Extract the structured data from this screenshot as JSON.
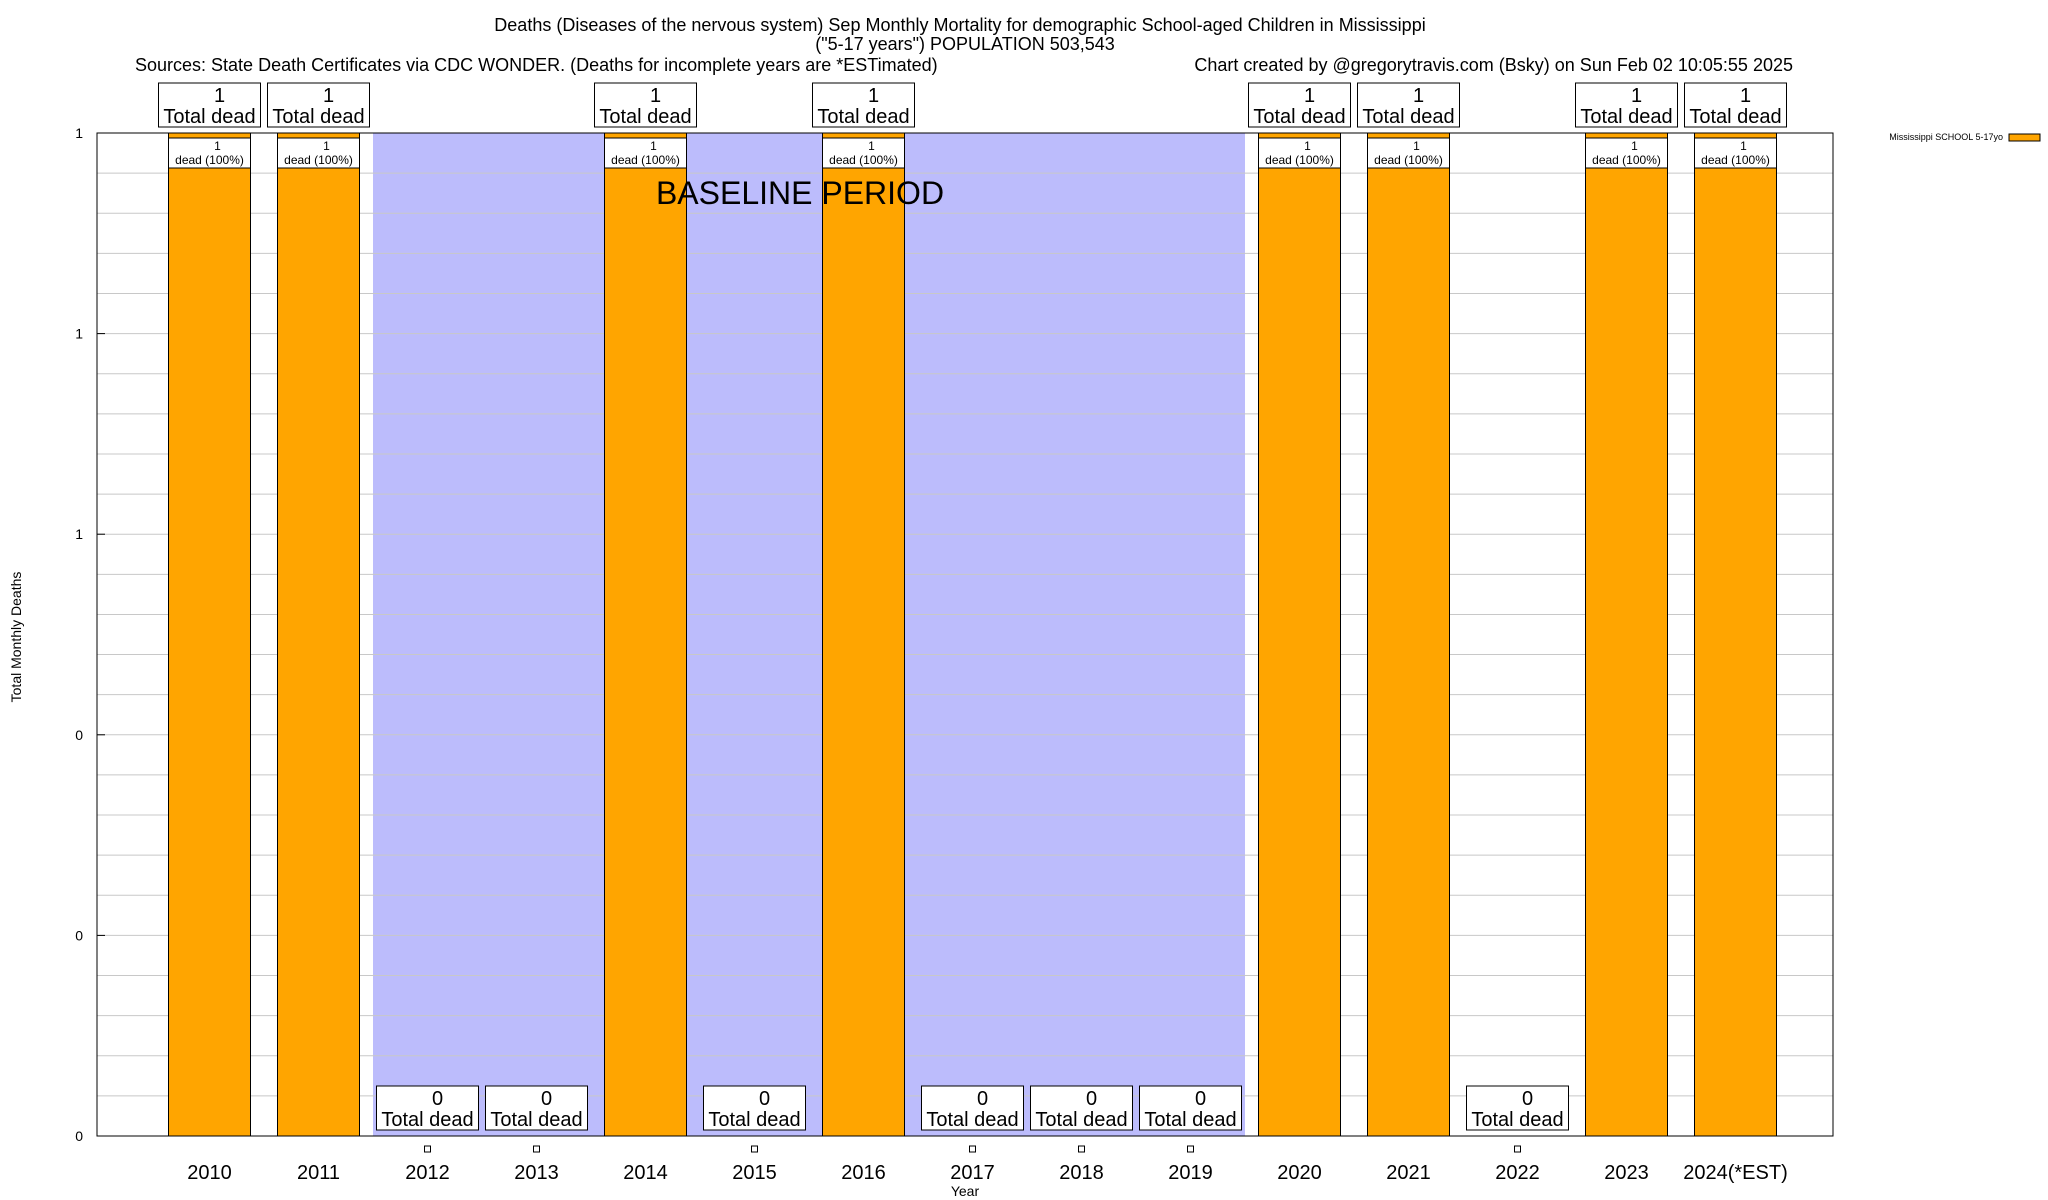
{
  "chart_data": {
    "type": "bar",
    "title": "Deaths (Diseases of the nervous system) Sep Monthly Mortality for demographic School-aged Children in Mississippi",
    "subtitle": "(\"5-17 years\") POPULATION 503,543",
    "sources": "Sources: State Death Certificates via CDC WONDER. (Deaths for incomplete years are *ESTimated)",
    "credit": "Chart created by @gregorytravis.com (Bsky) on Sun Feb 02 10:05:55 2025",
    "xlabel": "Year",
    "ylabel": "Total Monthly Deaths",
    "categories": [
      "2010",
      "2011",
      "2012",
      "2013",
      "2014",
      "2015",
      "2016",
      "2017",
      "2018",
      "2019",
      "2020",
      "2021",
      "2022",
      "2023",
      "2024(*EST)"
    ],
    "series": [
      {
        "name": "Mississippi SCHOOL 5-17yo",
        "color": "#ffa500",
        "values": [
          1,
          1,
          0,
          0,
          1,
          0,
          1,
          0,
          0,
          0,
          1,
          1,
          0,
          1,
          1
        ]
      }
    ],
    "top_labels": [
      {
        "count": "1",
        "text": "Total dead"
      },
      {
        "count": "1",
        "text": "Total dead"
      },
      {
        "count": "0",
        "text": "Total dead"
      },
      {
        "count": "0",
        "text": "Total dead"
      },
      {
        "count": "1",
        "text": "Total dead"
      },
      {
        "count": "0",
        "text": "Total dead"
      },
      {
        "count": "1",
        "text": "Total dead"
      },
      {
        "count": "0",
        "text": "Total dead"
      },
      {
        "count": "0",
        "text": "Total dead"
      },
      {
        "count": "0",
        "text": "Total dead"
      },
      {
        "count": "1",
        "text": "Total dead"
      },
      {
        "count": "1",
        "text": "Total dead"
      },
      {
        "count": "0",
        "text": "Total dead"
      },
      {
        "count": "1",
        "text": "Total dead"
      },
      {
        "count": "1",
        "text": "Total dead"
      }
    ],
    "inner_labels": [
      {
        "count": "1",
        "text": "dead (100%)"
      },
      {
        "count": "1",
        "text": "dead (100%)"
      },
      null,
      null,
      {
        "count": "1",
        "text": "dead (100%)"
      },
      null,
      {
        "count": "1",
        "text": "dead (100%)"
      },
      null,
      null,
      null,
      {
        "count": "1",
        "text": "dead (100%)"
      },
      {
        "count": "1",
        "text": "dead (100%)"
      },
      null,
      {
        "count": "1",
        "text": "dead (100%)"
      },
      {
        "count": "1",
        "text": "dead (100%)"
      }
    ],
    "y_ticks": [
      {
        "value": 0,
        "label": "0"
      },
      {
        "value": 0.2,
        "label": "0"
      },
      {
        "value": 0.4,
        "label": "0"
      },
      {
        "value": 0.6,
        "label": "1"
      },
      {
        "value": 0.8,
        "label": "1"
      },
      {
        "value": 1.0,
        "label": "1"
      }
    ],
    "ylim": [
      0,
      1
    ],
    "grid": true,
    "baseline_period": {
      "label": "BASELINE PERIOD",
      "from": "2012",
      "to": "2019",
      "color": "#bcbcfc"
    },
    "legend": {
      "position": "top-right",
      "label": "Mississippi SCHOOL 5-17yo"
    }
  }
}
